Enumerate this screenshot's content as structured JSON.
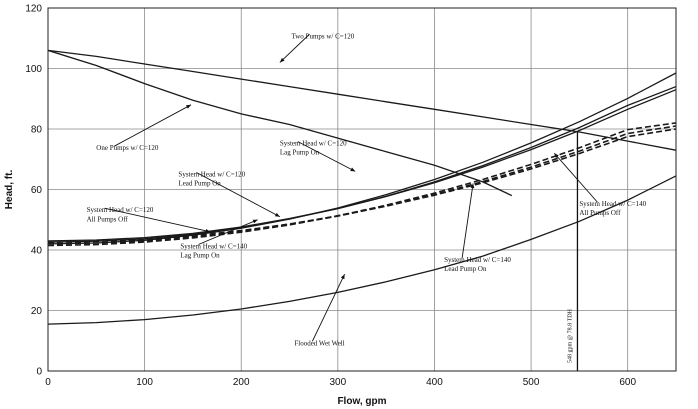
{
  "chart_data": {
    "type": "line",
    "xlabel": "Flow, gpm",
    "ylabel": "Head, ft.",
    "xlim": [
      0,
      650
    ],
    "ylim": [
      0,
      120
    ],
    "x_ticks": [
      0,
      100,
      200,
      300,
      400,
      500,
      600
    ],
    "y_ticks": [
      0,
      20,
      40,
      60,
      80,
      100,
      120
    ],
    "grid": true,
    "series": [
      {
        "name": "Two Pumps w/ C=120",
        "style": "solid",
        "x": [
          0,
          50,
          100,
          150,
          200,
          250,
          300,
          350,
          400,
          450,
          500,
          550,
          600,
          650
        ],
        "y": [
          106,
          104,
          101.5,
          99,
          96.5,
          94,
          91.5,
          89,
          86.5,
          84,
          81.5,
          79,
          76,
          73
        ]
      },
      {
        "name": "One Pumps w/ C=120",
        "style": "solid",
        "x": [
          0,
          50,
          100,
          150,
          200,
          250,
          300,
          350,
          400,
          450,
          480
        ],
        "y": [
          106,
          101,
          95,
          89.5,
          85,
          81.5,
          77,
          72.5,
          68,
          62.5,
          58
        ]
      },
      {
        "name": "System Head w/ C=120 All Pumps Off",
        "style": "solid",
        "x": [
          0,
          50,
          100,
          150,
          200,
          250,
          300,
          350,
          400,
          450,
          500,
          550,
          600,
          650
        ],
        "y": [
          42,
          42.3,
          43.2,
          44.9,
          47.2,
          50.2,
          53.9,
          58.3,
          63.3,
          69,
          75.4,
          82.4,
          90.1,
          98.5
        ]
      },
      {
        "name": "System Head w/ C=120 Lead Pump On",
        "style": "solid",
        "x": [
          0,
          50,
          100,
          150,
          200,
          250,
          300,
          350,
          400,
          450,
          500,
          550,
          600,
          650
        ],
        "y": [
          42.6,
          42.9,
          43.7,
          45.2,
          47.4,
          50.3,
          53.7,
          57.8,
          62.5,
          67.9,
          73.9,
          80.5,
          87.8,
          94
        ]
      },
      {
        "name": "System Head w/ C=120 Lag Pump On",
        "style": "solid",
        "x": [
          0,
          50,
          100,
          150,
          200,
          250,
          300,
          350,
          400,
          450,
          500,
          550,
          600,
          650
        ],
        "y": [
          43,
          43.3,
          44.1,
          45.5,
          47.6,
          50.4,
          53.7,
          57.7,
          62.2,
          67.4,
          73.2,
          79.5,
          86.5,
          93
        ]
      },
      {
        "name": "System Head w/ C=140 All Pumps Off",
        "style": "dashed",
        "x": [
          0,
          50,
          100,
          150,
          200,
          250,
          300,
          350,
          400,
          450,
          500,
          550,
          600,
          650
        ],
        "y": [
          41.5,
          41.8,
          42.6,
          44,
          45.9,
          48.3,
          51.3,
          54.8,
          58.8,
          63.3,
          68.3,
          73.8,
          79.8,
          82
        ]
      },
      {
        "name": "System Head w/ C=140 Lead Pump On",
        "style": "dashed",
        "x": [
          0,
          50,
          100,
          150,
          200,
          250,
          300,
          350,
          400,
          450,
          500,
          550,
          600,
          650
        ],
        "y": [
          42,
          42.3,
          43,
          44.3,
          46.1,
          48.4,
          51.2,
          54.5,
          58.3,
          62.6,
          67.4,
          72.7,
          78.5,
          81
        ]
      },
      {
        "name": "System Head w/ C=140 Lag Pump On",
        "style": "dashed",
        "x": [
          0,
          50,
          100,
          150,
          200,
          250,
          300,
          350,
          400,
          450,
          500,
          550,
          600,
          650
        ],
        "y": [
          42.5,
          42.8,
          43.5,
          44.7,
          46.4,
          48.6,
          51.3,
          54.5,
          58.1,
          62.2,
          66.8,
          71.9,
          77.5,
          80
        ]
      },
      {
        "name": "Flooded Wet Well",
        "style": "solid",
        "x": [
          0,
          50,
          100,
          150,
          200,
          250,
          300,
          350,
          400,
          450,
          500,
          550,
          600,
          650
        ],
        "y": [
          15.5,
          16,
          17,
          18.5,
          20.5,
          23,
          26,
          29.5,
          33.5,
          38,
          43.5,
          49.5,
          56.5,
          64.5
        ]
      }
    ],
    "annotations": [
      {
        "text": "Two Pumps w/ C=120",
        "x": 252,
        "y": 110,
        "arrow_to": [
          240,
          102
        ]
      },
      {
        "text": "One Pumps w/ C=120",
        "x": 50,
        "y": 73,
        "arrow_to": [
          148,
          88
        ]
      },
      {
        "text": "System Head w/ C=120",
        "x": 240,
        "y": 74.5,
        "arrow_to": [
          318,
          66
        ]
      },
      {
        "text": "Lag Pump On",
        "x": 240,
        "y": 71.5
      },
      {
        "text": "System Head w/ C=120",
        "x": 135,
        "y": 64.3,
        "arrow_to": [
          240,
          51
        ]
      },
      {
        "text": "Lead Pump On",
        "x": 135,
        "y": 61.3
      },
      {
        "text": "System Head w/ C=120",
        "x": 40,
        "y": 52.5,
        "arrow_to": [
          168,
          46
        ]
      },
      {
        "text": "All Pumps Off",
        "x": 40,
        "y": 49.5
      },
      {
        "text": "System Head w/ C=140",
        "x": 137,
        "y": 40.5,
        "arrow_to": [
          217,
          50
        ]
      },
      {
        "text": "Lag Pump On",
        "x": 137,
        "y": 37.5
      },
      {
        "text": "System Head w/ C=140",
        "x": 550,
        "y": 54.5,
        "arrow_to": [
          524,
          72
        ]
      },
      {
        "text": "All Pumps Off",
        "x": 550,
        "y": 51.5
      },
      {
        "text": "System Head w/ C=140",
        "x": 410,
        "y": 36,
        "arrow_to": [
          440,
          62
        ]
      },
      {
        "text": "Lead Pump On",
        "x": 410,
        "y": 33
      },
      {
        "text": "Flooded Wet Well",
        "x": 255,
        "y": 8.5,
        "arrow_to": [
          307,
          32
        ]
      }
    ],
    "vertical_line": {
      "x": 548,
      "y_top": 79,
      "label": "548 gpm @ 78.8 TDH"
    }
  }
}
